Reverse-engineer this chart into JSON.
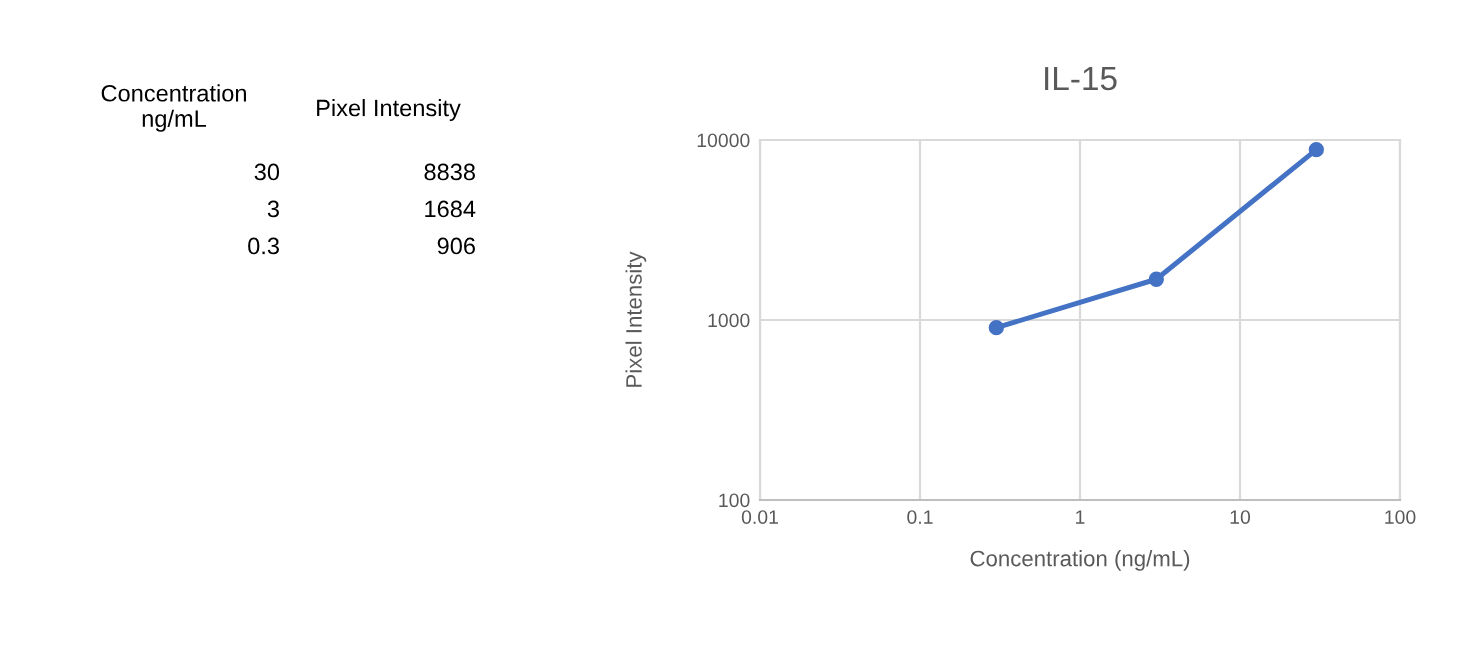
{
  "chart_data": [
    {
      "type": "other",
      "annotations": [
        "Concentration\nng/mL",
        "Pixel Intensity",
        "30",
        "8838",
        "3",
        "1684",
        "0.3",
        "906"
      ]
    },
    {
      "type": "line",
      "title": "IL-15",
      "xlabel": "Concentration (ng/mL)",
      "ylabel": "Pixel Intensity",
      "x": [
        30,
        3,
        0.3
      ],
      "series": [
        {
          "color": "#4472c4",
          "values": [
            8838,
            1684,
            906
          ]
        }
      ],
      "log": "xy",
      "xlim": [
        0.01,
        100
      ],
      "ylim": [
        100,
        10000
      ],
      "xticks": [
        0.01,
        0.1,
        1,
        10,
        100
      ],
      "yticks": [
        100,
        1000,
        10000
      ],
      "grid": true,
      "marker": "circle",
      "line_style": "solid"
    }
  ]
}
